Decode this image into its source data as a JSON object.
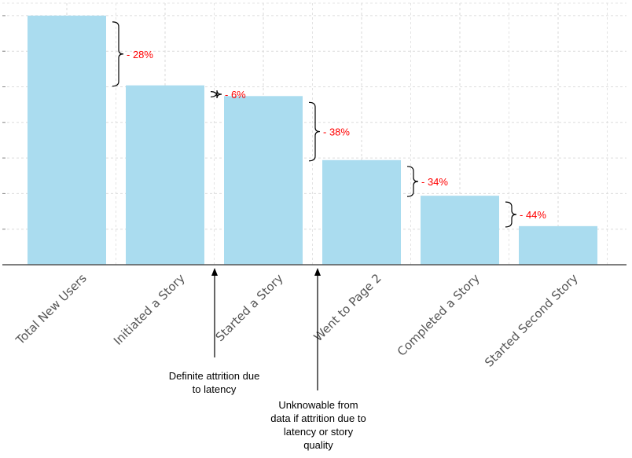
{
  "chart_data": {
    "type": "bar",
    "categories": [
      "Total New Users",
      "Initiated a Story",
      "Started a Story",
      "Went to Page 2",
      "Completed a Story",
      "Started Second Story"
    ],
    "values": [
      100,
      72,
      67.7,
      42,
      27.7,
      15.5
    ],
    "drops": [
      "- 28%",
      "- 6%",
      "- 38%",
      "- 34%",
      "- 44%"
    ],
    "ylim": [
      0,
      105
    ],
    "grid": true,
    "bar_color": "#aadcef",
    "drop_label_color": "#ff0000",
    "annotations": [
      {
        "name": "latency-note",
        "lines": [
          "Definite attrition due",
          "to latency"
        ]
      },
      {
        "name": "unknowable-note",
        "lines": [
          "Unknowable from",
          "data if attrition due to",
          "latency or story",
          "quality"
        ]
      }
    ]
  }
}
